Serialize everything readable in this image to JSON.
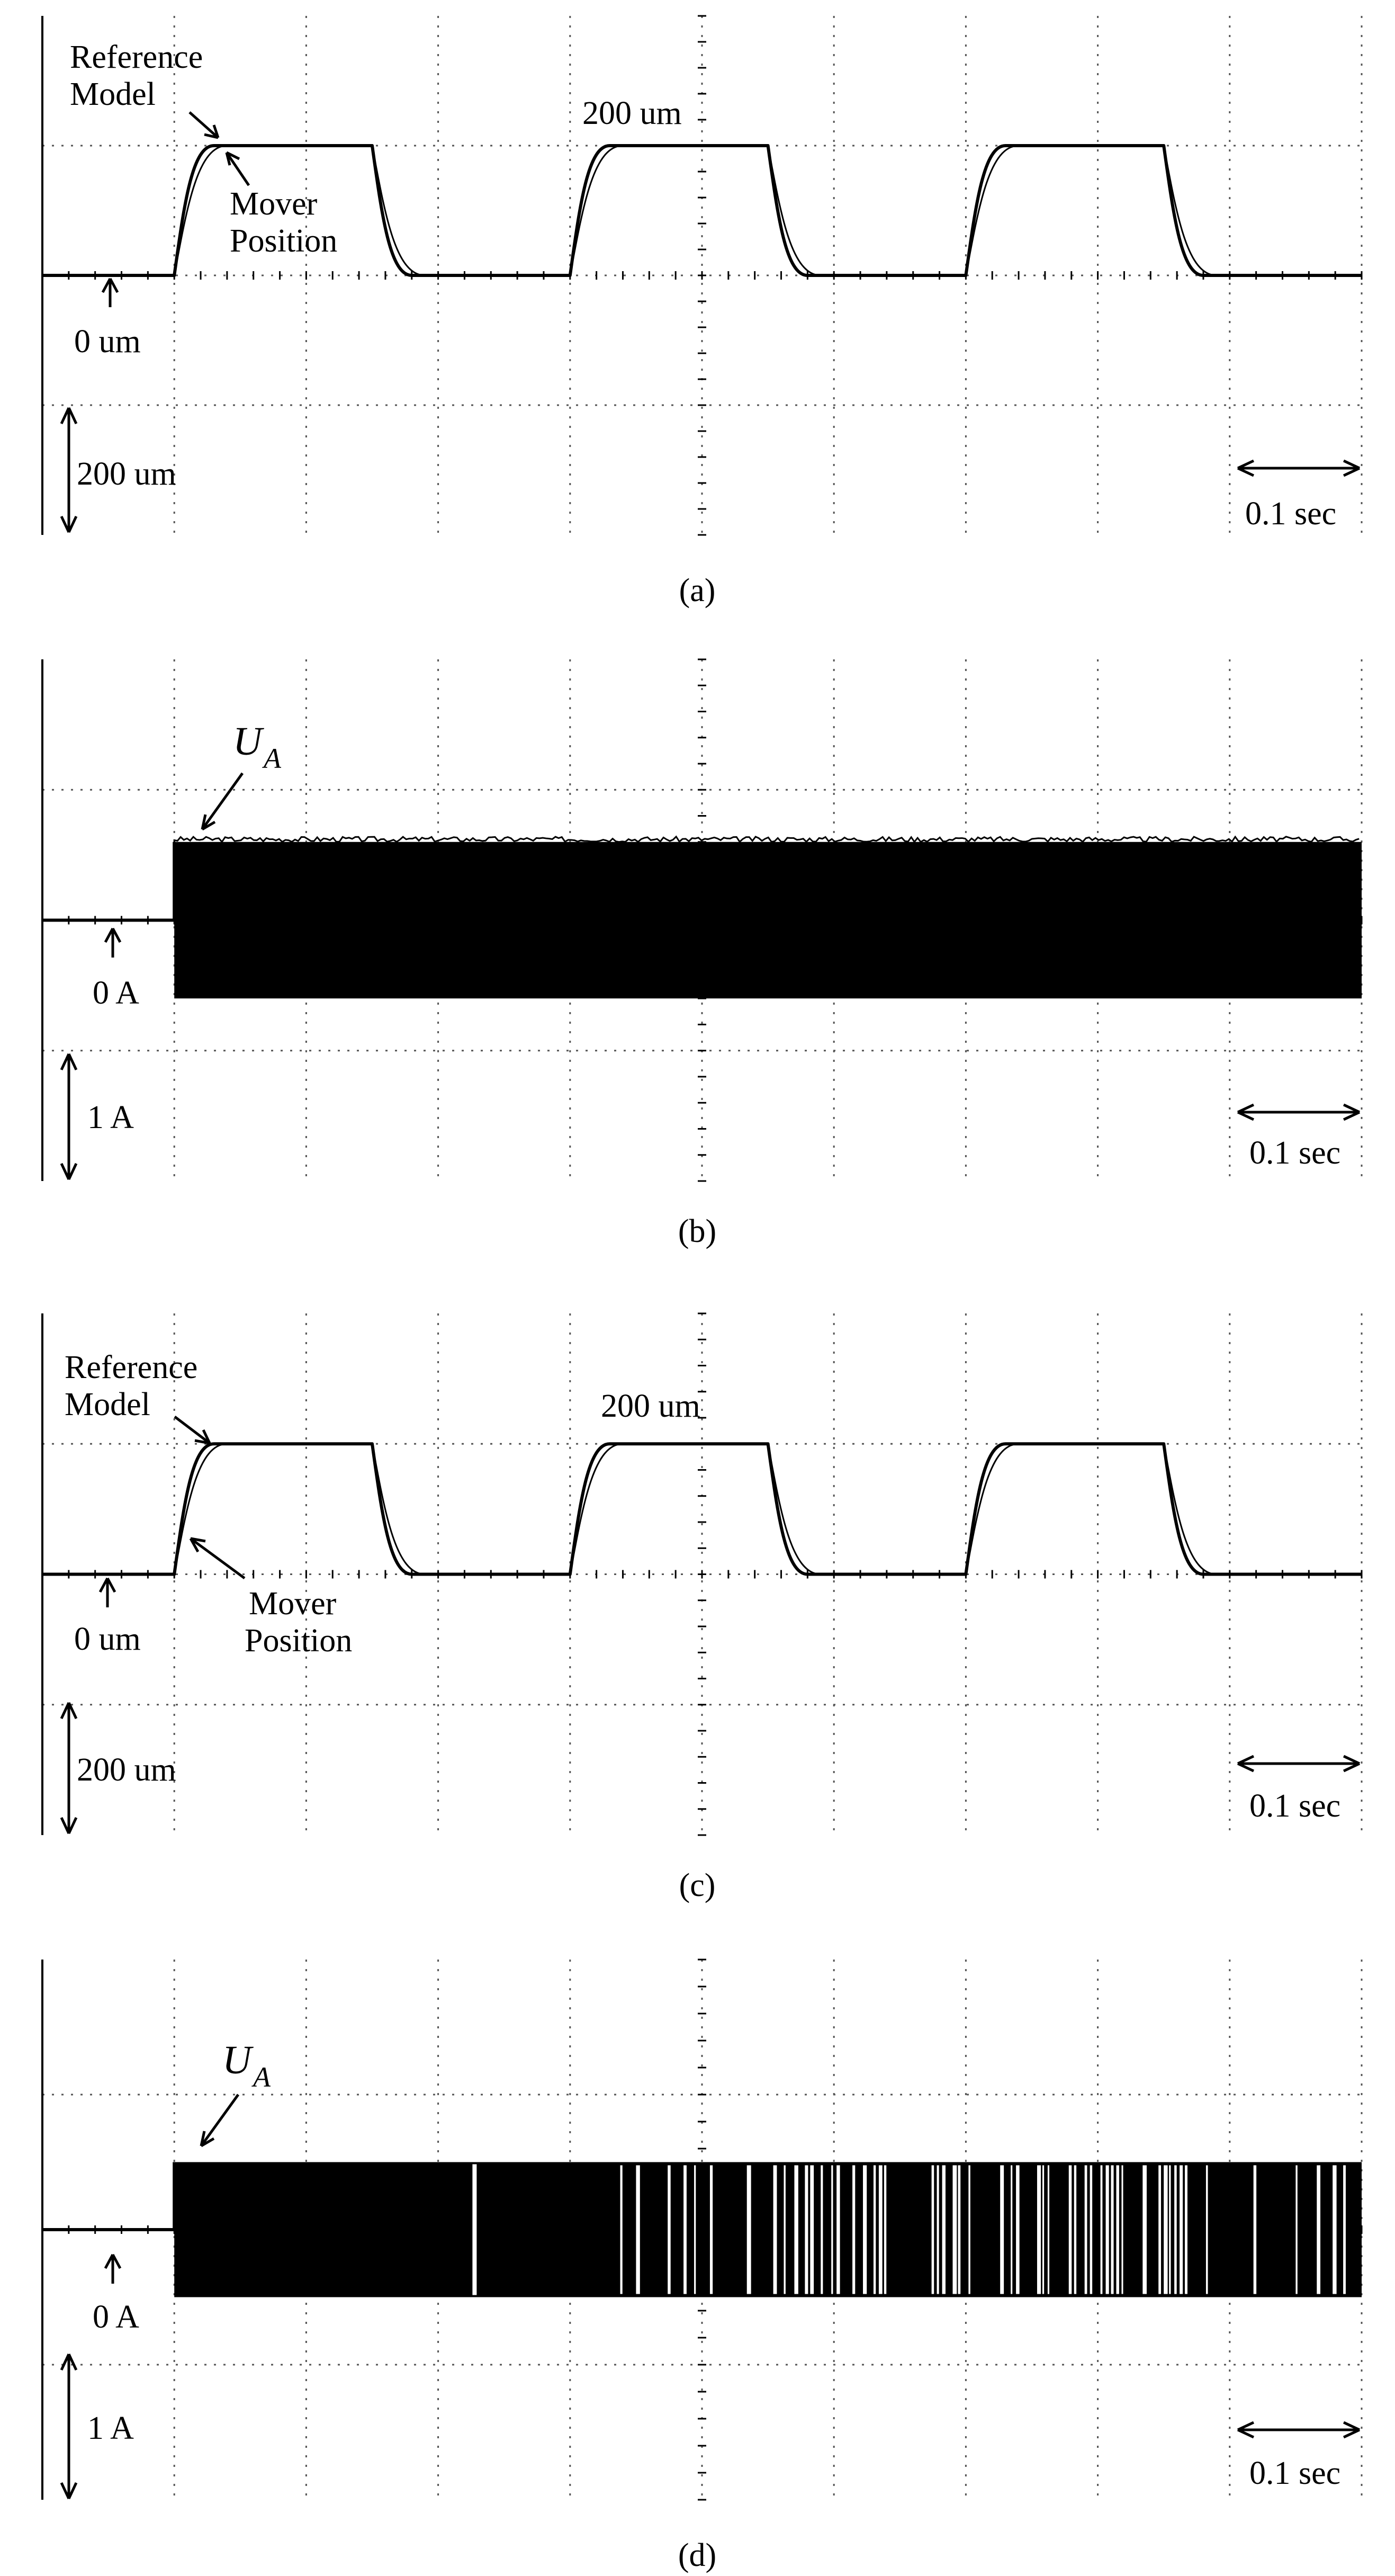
{
  "panels": [
    {
      "caption": "(a)",
      "kind": "position",
      "labels": {
        "ref1": "Reference",
        "ref2": "Model",
        "mov1": "Mover",
        "mov2": "Position",
        "level": "200 um",
        "zero": "0 um",
        "vscale": "200 um",
        "tscale": "0.1 sec"
      }
    },
    {
      "caption": "(b)",
      "kind": "current",
      "labels": {
        "u": "U",
        "usub": "A",
        "zero": "0 A",
        "vscale": "1 A",
        "tscale": "0.1 sec"
      }
    },
    {
      "caption": "(c)",
      "kind": "position",
      "labels": {
        "ref1": "Reference",
        "ref2": "Model",
        "mov1": "Mover",
        "mov2": "Position",
        "level": "200 um",
        "zero": "0 um",
        "vscale": "200 um",
        "tscale": "0.1 sec"
      }
    },
    {
      "caption": "(d)",
      "kind": "current",
      "labels": {
        "u": "U",
        "usub": "A",
        "zero": "0 A",
        "vscale": "1 A",
        "tscale": "0.1 sec"
      }
    }
  ],
  "chart_data": [
    {
      "type": "line",
      "panel": "(a)",
      "x_unit": "sec",
      "y_unit": "um",
      "x_per_div": 0.1,
      "y_per_div": 200,
      "xlim": [
        0,
        1.0
      ],
      "ylim": [
        -400,
        400
      ],
      "grid": true,
      "series": [
        {
          "name": "Reference Model",
          "x": [
            0,
            0.1,
            0.13,
            0.25,
            0.28,
            0.4,
            0.43,
            0.55,
            0.58,
            0.7,
            0.73,
            0.85,
            0.88,
            1.0
          ],
          "y": [
            0,
            0,
            200,
            200,
            0,
            0,
            200,
            200,
            0,
            0,
            200,
            200,
            0,
            0
          ]
        },
        {
          "name": "Mover Position",
          "x": [
            0,
            0.1,
            0.14,
            0.25,
            0.29,
            0.4,
            0.44,
            0.55,
            0.59,
            0.7,
            0.74,
            0.85,
            0.89,
            1.0
          ],
          "y": [
            0,
            0,
            200,
            200,
            0,
            0,
            200,
            200,
            0,
            0,
            200,
            200,
            0,
            0
          ]
        }
      ]
    },
    {
      "type": "line",
      "panel": "(b)",
      "x_unit": "sec",
      "y_unit": "A",
      "x_per_div": 0.1,
      "y_per_div": 1,
      "xlim": [
        0,
        1.0
      ],
      "ylim": [
        -2,
        2
      ],
      "grid": true,
      "series": [
        {
          "name": "U_A",
          "x": [
            0,
            0.1,
            0.1,
            1.0
          ],
          "y": [
            0,
            0,
            0.6,
            0.6
          ],
          "envelope_min": -0.6,
          "envelope_max": 0.6
        }
      ]
    },
    {
      "type": "line",
      "panel": "(c)",
      "x_unit": "sec",
      "y_unit": "um",
      "x_per_div": 0.1,
      "y_per_div": 200,
      "xlim": [
        0,
        1.0
      ],
      "ylim": [
        -400,
        400
      ],
      "grid": true,
      "series": [
        {
          "name": "Reference Model",
          "x": [
            0,
            0.1,
            0.13,
            0.25,
            0.28,
            0.4,
            0.43,
            0.55,
            0.58,
            0.7,
            0.73,
            0.85,
            0.88,
            1.0
          ],
          "y": [
            0,
            0,
            200,
            200,
            0,
            0,
            200,
            200,
            0,
            0,
            200,
            200,
            0,
            0
          ]
        },
        {
          "name": "Mover Position",
          "x": [
            0,
            0.1,
            0.14,
            0.25,
            0.29,
            0.4,
            0.44,
            0.55,
            0.59,
            0.7,
            0.74,
            0.85,
            0.89,
            1.0
          ],
          "y": [
            0,
            0,
            200,
            200,
            0,
            0,
            200,
            200,
            0,
            0,
            200,
            200,
            0,
            0
          ]
        }
      ]
    },
    {
      "type": "line",
      "panel": "(d)",
      "x_unit": "sec",
      "y_unit": "A",
      "x_per_div": 0.1,
      "y_per_div": 1,
      "xlim": [
        0,
        1.0
      ],
      "ylim": [
        -2,
        2
      ],
      "grid": true,
      "series": [
        {
          "name": "U_A",
          "x": [
            0,
            0.1,
            0.1,
            1.0
          ],
          "y": [
            0,
            0,
            0.5,
            0.5
          ],
          "envelope_min": -0.5,
          "envelope_max": 0.5
        }
      ]
    }
  ]
}
